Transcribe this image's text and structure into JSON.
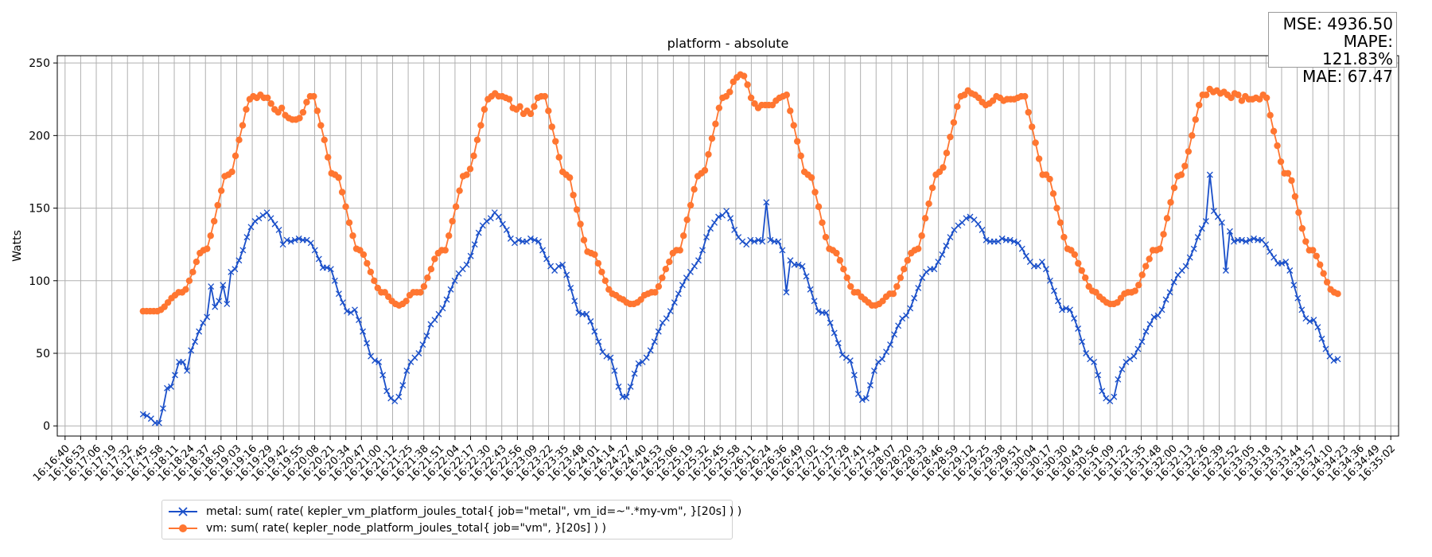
{
  "chart_data": {
    "type": "line",
    "title": "platform - absolute",
    "xlabel": "",
    "ylabel": "Watts",
    "ylim": [
      -7,
      255
    ],
    "yticks": [
      0,
      50,
      100,
      150,
      200,
      250
    ],
    "grid": true,
    "legend_position": "bottom-left, below axes",
    "x_tick_labels": [
      "16:16:40",
      "16:16:53",
      "16:17:06",
      "16:17:19",
      "16:17:32",
      "16:17:45",
      "16:17:58",
      "16:18:11",
      "16:18:24",
      "16:18:37",
      "16:18:50",
      "16:19:03",
      "16:19:16",
      "16:19:29",
      "16:19:42",
      "16:19:55",
      "16:20:08",
      "16:20:21",
      "16:20:34",
      "16:20:47",
      "16:21:00",
      "16:21:12",
      "16:21:25",
      "16:21:38",
      "16:21:51",
      "16:22:04",
      "16:22:17",
      "16:22:30",
      "16:22:43",
      "16:22:56",
      "16:23:09",
      "16:23:22",
      "16:23:35",
      "16:23:48",
      "16:24:01",
      "16:24:14",
      "16:24:27",
      "16:24:40",
      "16:24:53",
      "16:25:06",
      "16:25:19",
      "16:25:32",
      "16:25:45",
      "16:25:58",
      "16:26:11",
      "16:26:24",
      "16:26:36",
      "16:26:49",
      "16:27:02",
      "16:27:15",
      "16:27:28",
      "16:27:41",
      "16:27:54",
      "16:28:07",
      "16:28:20",
      "16:28:33",
      "16:28:46",
      "16:28:59",
      "16:29:12",
      "16:29:25",
      "16:29:38",
      "16:29:51",
      "16:30:04",
      "16:30:17",
      "16:30:30",
      "16:30:43",
      "16:30:56",
      "16:31:09",
      "16:31:22",
      "16:31:35",
      "16:31:48",
      "16:32:00",
      "16:32:13",
      "16:32:26",
      "16:32:39",
      "16:32:52",
      "16:33:05",
      "16:33:18",
      "16:33:31",
      "16:33:44",
      "16:33:57",
      "16:34:10",
      "16:34:23",
      "16:34:36",
      "16:34:49",
      "16:35:02"
    ],
    "x_start": 5.0,
    "x_end": 81.6,
    "series": [
      {
        "name": "metal: sum( rate( kepler_vm_platform_joules_total{ job=\"metal\", vm_id=~\".*my-vm\", }[20s] ) )",
        "color": "#1a4fc9",
        "marker": "x",
        "values": [
          8,
          7,
          5,
          2,
          2,
          12,
          26,
          27,
          35,
          44,
          44,
          38,
          52,
          58,
          65,
          71,
          75,
          96,
          82,
          86,
          97,
          84,
          106,
          108,
          114,
          121,
          130,
          137,
          141,
          143,
          145,
          147,
          143,
          139,
          135,
          125,
          128,
          127,
          128,
          129,
          128,
          128,
          126,
          121,
          115,
          109,
          109,
          108,
          100,
          91,
          85,
          79,
          78,
          80,
          73,
          65,
          57,
          48,
          45,
          44,
          35,
          24,
          19,
          17,
          20,
          28,
          38,
          44,
          47,
          50,
          56,
          62,
          70,
          73,
          77,
          81,
          87,
          94,
          100,
          105,
          108,
          111,
          117,
          125,
          133,
          138,
          141,
          143,
          147,
          144,
          139,
          135,
          129,
          126,
          128,
          127,
          127,
          129,
          128,
          127,
          121,
          115,
          110,
          107,
          110,
          111,
          104,
          95,
          86,
          78,
          77,
          77,
          72,
          65,
          58,
          51,
          48,
          47,
          38,
          27,
          20,
          20,
          27,
          36,
          43,
          44,
          47,
          52,
          58,
          65,
          71,
          74,
          79,
          85,
          91,
          97,
          102,
          106,
          110,
          114,
          121,
          130,
          136,
          140,
          144,
          145,
          148,
          143,
          135,
          130,
          127,
          125,
          128,
          127,
          128,
          127,
          154,
          128,
          127,
          127,
          121,
          92,
          114,
          111,
          111,
          110,
          103,
          94,
          86,
          79,
          78,
          78,
          71,
          64,
          57,
          49,
          47,
          45,
          35,
          22,
          18,
          19,
          28,
          38,
          44,
          46,
          51,
          56,
          63,
          69,
          74,
          76,
          81,
          88,
          95,
          102,
          106,
          108,
          108,
          113,
          118,
          124,
          130,
          135,
          138,
          140,
          143,
          144,
          142,
          139,
          135,
          128,
          127,
          127,
          127,
          129,
          128,
          128,
          127,
          126,
          122,
          117,
          113,
          110,
          110,
          113,
          108,
          100,
          93,
          86,
          80,
          81,
          80,
          74,
          67,
          58,
          50,
          46,
          44,
          35,
          24,
          19,
          17,
          20,
          32,
          39,
          44,
          46,
          48,
          53,
          58,
          65,
          70,
          75,
          76,
          80,
          87,
          92,
          99,
          104,
          107,
          110,
          116,
          122,
          130,
          136,
          141,
          173,
          148,
          144,
          140,
          107,
          134,
          127,
          128,
          128,
          127,
          128,
          129,
          128,
          128,
          125,
          120,
          116,
          112,
          112,
          113,
          107,
          97,
          88,
          80,
          74,
          72,
          73,
          68,
          60,
          53,
          48,
          45,
          46
        ]
      },
      {
        "name": "vm: sum( rate( kepler_node_platform_joules_total{ job=\"vm\", }[20s] ) )",
        "color": "#ff7631",
        "marker": "o",
        "values": [
          79,
          79,
          79,
          79,
          79,
          80,
          82,
          85,
          88,
          90,
          92,
          92,
          94,
          100,
          106,
          113,
          119,
          121,
          122,
          131,
          141,
          152,
          162,
          172,
          173,
          175,
          186,
          197,
          207,
          218,
          225,
          227,
          226,
          228,
          226,
          226,
          222,
          218,
          216,
          219,
          214,
          212,
          211,
          211,
          212,
          216,
          223,
          227,
          227,
          217,
          207,
          197,
          185,
          174,
          173,
          171,
          161,
          151,
          140,
          131,
          122,
          121,
          118,
          112,
          106,
          100,
          95,
          92,
          92,
          89,
          86,
          84,
          83,
          84,
          86,
          90,
          92,
          92,
          92,
          96,
          102,
          108,
          115,
          119,
          121,
          121,
          131,
          141,
          151,
          162,
          172,
          173,
          177,
          186,
          197,
          207,
          218,
          225,
          227,
          229,
          227,
          227,
          226,
          225,
          219,
          218,
          220,
          215,
          217,
          215,
          220,
          226,
          227,
          227,
          217,
          206,
          196,
          185,
          175,
          173,
          171,
          159,
          149,
          139,
          128,
          120,
          119,
          118,
          112,
          106,
          100,
          94,
          91,
          90,
          88,
          87,
          85,
          84,
          84,
          85,
          87,
          90,
          91,
          92,
          92,
          96,
          102,
          108,
          113,
          119,
          121,
          121,
          131,
          142,
          152,
          163,
          172,
          174,
          176,
          187,
          198,
          208,
          219,
          226,
          227,
          230,
          237,
          240,
          242,
          241,
          235,
          226,
          222,
          219,
          221,
          221,
          221,
          221,
          224,
          226,
          227,
          228,
          217,
          207,
          196,
          186,
          175,
          173,
          171,
          161,
          151,
          140,
          130,
          122,
          121,
          119,
          114,
          108,
          102,
          96,
          92,
          92,
          89,
          87,
          85,
          83,
          83,
          84,
          86,
          89,
          91,
          91,
          96,
          102,
          108,
          114,
          119,
          121,
          122,
          131,
          143,
          153,
          164,
          173,
          175,
          178,
          188,
          199,
          209,
          220,
          227,
          228,
          231,
          229,
          228,
          226,
          223,
          221,
          222,
          224,
          227,
          226,
          224,
          225,
          225,
          225,
          226,
          227,
          227,
          216,
          206,
          195,
          184,
          173,
          173,
          170,
          160,
          150,
          140,
          130,
          122,
          121,
          118,
          112,
          107,
          102,
          96,
          93,
          92,
          89,
          87,
          85,
          84,
          84,
          85,
          88,
          91,
          92,
          92,
          93,
          97,
          104,
          110,
          115,
          121,
          121,
          122,
          132,
          143,
          154,
          164,
          172,
          173,
          179,
          189,
          200,
          211,
          221,
          228,
          228,
          232,
          230,
          231,
          229,
          230,
          228,
          226,
          229,
          228,
          224,
          227,
          225,
          225,
          226,
          225,
          228,
          226,
          214,
          203,
          193,
          182,
          174,
          174,
          169,
          158,
          147,
          136,
          127,
          121,
          121,
          117,
          111,
          105,
          99,
          94,
          92,
          91
        ]
      }
    ]
  },
  "stats": {
    "mse": "MSE: 4936.50",
    "mape": "MAPE: 121.83%",
    "mae": "MAE: 67.47"
  },
  "colors": {
    "metal": "#1a4fc9",
    "vm": "#ff7631",
    "grid": "#b0b0b0"
  }
}
